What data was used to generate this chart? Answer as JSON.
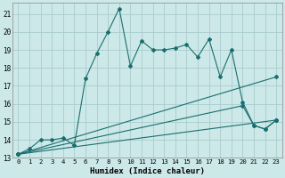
{
  "xlabel": "Humidex (Indice chaleur)",
  "bg_color": "#cce8e8",
  "grid_color": "#b0d4d4",
  "line_color": "#1a6e6e",
  "xlim": [
    -0.5,
    23.5
  ],
  "ylim": [
    13,
    21.6
  ],
  "xticks": [
    0,
    1,
    2,
    3,
    4,
    5,
    6,
    7,
    8,
    9,
    10,
    11,
    12,
    13,
    14,
    15,
    16,
    17,
    18,
    19,
    20,
    21,
    22,
    23
  ],
  "yticks": [
    13,
    14,
    15,
    16,
    17,
    18,
    19,
    20,
    21
  ],
  "series": [
    {
      "x": [
        0,
        1,
        2,
        3,
        4,
        5,
        6,
        7,
        8,
        9,
        10,
        11,
        12,
        13,
        14,
        15,
        16,
        17,
        18,
        19,
        20,
        21,
        22,
        23
      ],
      "y": [
        13.2,
        13.5,
        14.0,
        14.0,
        14.1,
        13.7,
        17.4,
        18.8,
        20.0,
        21.3,
        18.1,
        19.5,
        19.0,
        19.0,
        19.1,
        19.3,
        18.6,
        19.6,
        17.5,
        19.0,
        16.1,
        14.8,
        14.6,
        15.1
      ]
    },
    {
      "x": [
        0,
        23
      ],
      "y": [
        13.2,
        17.5
      ]
    },
    {
      "x": [
        0,
        20,
        21,
        22,
        23
      ],
      "y": [
        13.2,
        15.9,
        14.8,
        14.6,
        15.1
      ]
    },
    {
      "x": [
        0,
        23
      ],
      "y": [
        13.2,
        15.1
      ]
    }
  ]
}
